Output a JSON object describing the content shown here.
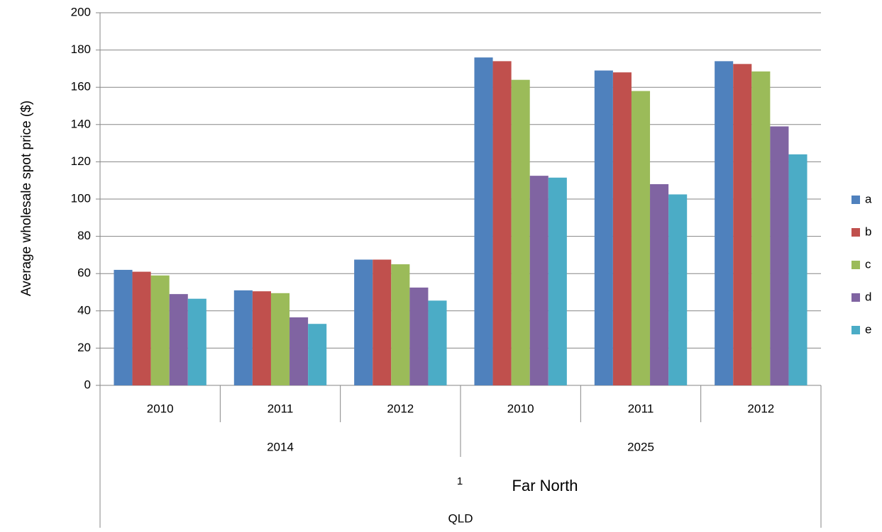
{
  "chart_data": {
    "type": "bar",
    "y_label": "Average wholesale spot price ($)",
    "categories": [
      "2010",
      "2011",
      "2012",
      "2010",
      "2011",
      "2012"
    ],
    "category_groups": [
      {
        "label": "2014",
        "span": 3
      },
      {
        "label": "2025",
        "span": 3
      }
    ],
    "region": {
      "note": "1",
      "label": "Far North"
    },
    "state": "QLD",
    "series": [
      {
        "name": "a",
        "color": "#4f81bd",
        "values": [
          62,
          51,
          67.5,
          176,
          169,
          174
        ]
      },
      {
        "name": "b",
        "color": "#c0504d",
        "values": [
          61,
          50.5,
          67.5,
          174,
          168,
          172.5
        ]
      },
      {
        "name": "c",
        "color": "#9bbb59",
        "values": [
          59,
          49.5,
          65,
          164,
          158,
          168.5
        ]
      },
      {
        "name": "d",
        "color": "#8064a2",
        "values": [
          49,
          36.5,
          52.5,
          112.5,
          108,
          139
        ]
      },
      {
        "name": "e",
        "color": "#4bacc6",
        "values": [
          46.5,
          33,
          45.5,
          111.5,
          102.5,
          124
        ]
      }
    ],
    "ylim": [
      0,
      200
    ],
    "yticks": [
      0,
      20,
      40,
      60,
      80,
      100,
      120,
      140,
      160,
      180,
      200
    ],
    "grid": true,
    "legend": "right"
  }
}
